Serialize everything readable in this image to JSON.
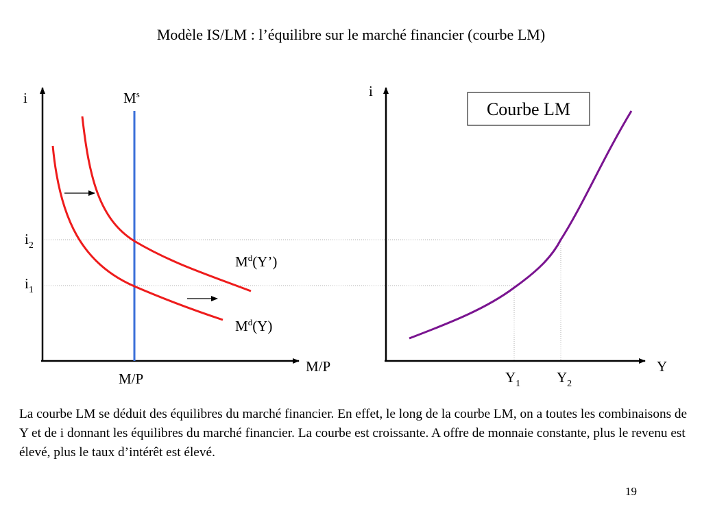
{
  "title": "Modèle IS/LM : l’équilibre sur le marché financier (courbe LM)",
  "left_panel": {
    "y_axis_label": "i",
    "x_axis_label": "M/P",
    "money_supply_label": {
      "base": "M",
      "sup": "s"
    },
    "money_supply_x_label": "M/P",
    "rate_labels": [
      {
        "base": "i",
        "sub": "2"
      },
      {
        "base": "i",
        "sub": "1"
      }
    ],
    "demand_curves": [
      {
        "base": "M",
        "sup": "d",
        "tail": "(Y’)"
      },
      {
        "base": "M",
        "sup": "d",
        "tail": "(Y)"
      }
    ]
  },
  "right_panel": {
    "y_axis_label": "i",
    "x_axis_label": "Y",
    "curve_title": "Courbe LM",
    "income_labels": [
      {
        "base": "Y",
        "sub": "1"
      },
      {
        "base": "Y",
        "sub": "2"
      }
    ]
  },
  "colors": {
    "demand_curve": "#ee1c1c",
    "money_supply": "#3a6fd8",
    "lm_curve": "#7a1490",
    "guide_lines": "#b0b0b0"
  },
  "caption": "La courbe LM se déduit des équilibres du marché financier. En effet, le long de la courbe LM, on a toutes les combinaisons de Y et de i donnant les équilibres du marché financier. La courbe est croissante. A offre de monnaie constante, plus le revenu est élevé, plus le taux d’intérêt est élevé.",
  "page_number": "19"
}
